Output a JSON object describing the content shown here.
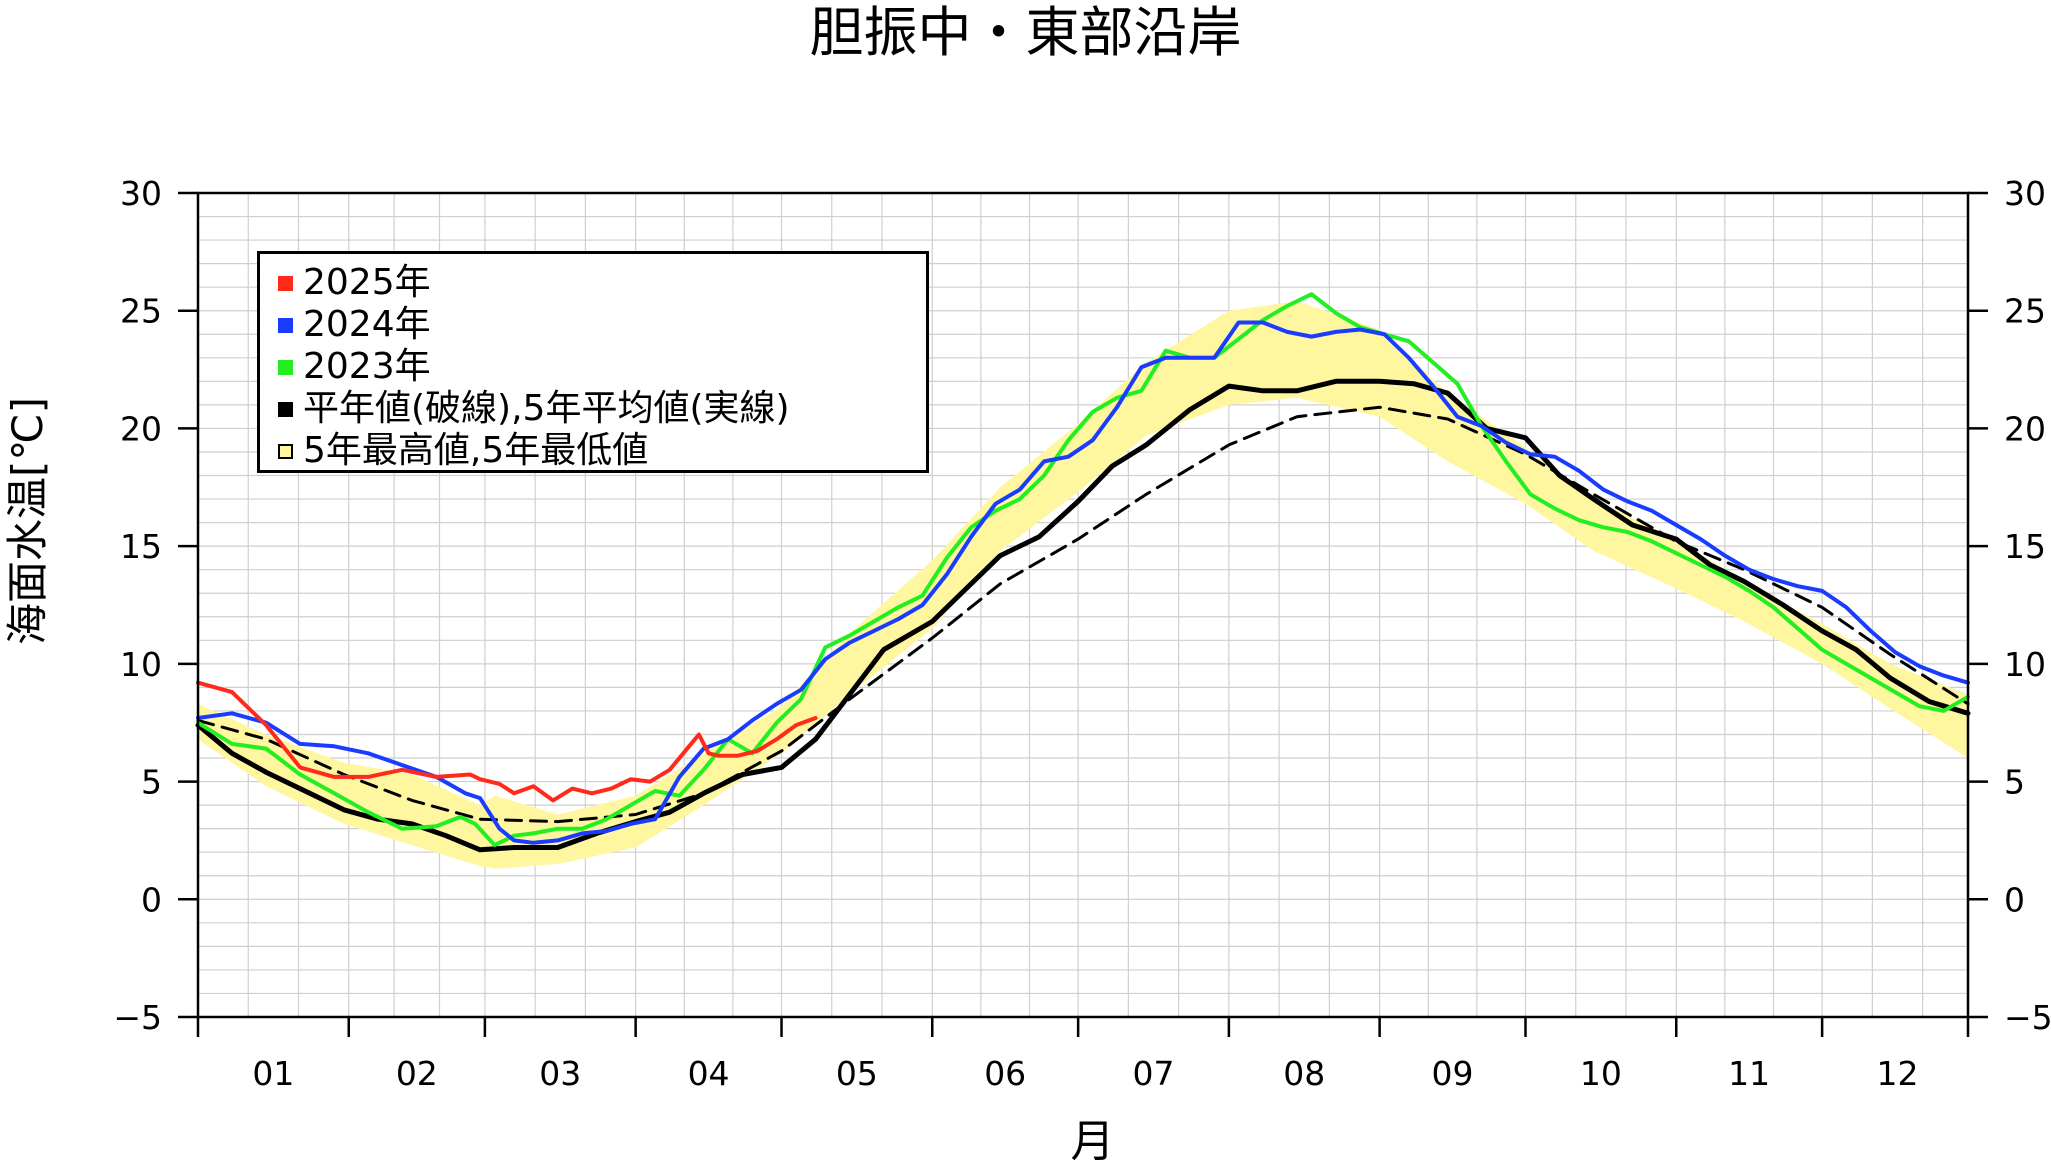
{
  "chart_data": {
    "type": "line",
    "title": "胆振中・東部沿岸",
    "xlabel": "月",
    "ylabel": "海面水温[℃]",
    "x_ticks": [
      "01",
      "02",
      "03",
      "04",
      "05",
      "06",
      "07",
      "08",
      "09",
      "10",
      "11",
      "12"
    ],
    "y_ticks": [
      "30",
      "25",
      "20",
      "15",
      "10",
      "5",
      "0",
      "−5"
    ],
    "ylim": [
      -5,
      30
    ],
    "xlim": [
      1,
      365
    ],
    "x_unit": "day of year",
    "grid": true,
    "legend_placement": "top-left",
    "legend": [
      {
        "label": "2025年",
        "color": "#ff2a1a",
        "style": "filled"
      },
      {
        "label": "2024年",
        "color": "#1a3cff",
        "style": "filled"
      },
      {
        "label": "2023年",
        "color": "#22ee22",
        "style": "filled"
      },
      {
        "label": "平年値(破線),5年平均値(実線)",
        "color": "#000000",
        "style": "filled"
      },
      {
        "label": "5年最高値,5年最低値",
        "color": "#fff6a0",
        "style": "outlined"
      }
    ],
    "band_5yr": {
      "name": "5年最高値,5年最低値",
      "x": [
        1,
        15,
        31,
        45,
        59,
        62,
        75,
        91,
        105,
        121,
        135,
        152,
        166,
        182,
        196,
        213,
        227,
        244,
        258,
        274,
        288,
        305,
        319,
        335,
        349,
        365
      ],
      "high": [
        8.3,
        7.0,
        5.8,
        5.3,
        4.0,
        4.4,
        3.6,
        4.4,
        6.2,
        8.2,
        11.3,
        14.4,
        17.5,
        20.2,
        22.8,
        25.0,
        25.4,
        24.2,
        21.5,
        19.2,
        17.0,
        15.3,
        13.5,
        11.7,
        10.0,
        8.7
      ],
      "low": [
        6.8,
        4.8,
        3.2,
        2.3,
        1.4,
        1.3,
        1.5,
        2.2,
        4.0,
        6.2,
        8.7,
        11.5,
        14.8,
        17.3,
        19.7,
        21.0,
        21.3,
        20.5,
        18.6,
        16.8,
        14.8,
        13.2,
        11.8,
        10.0,
        8.1,
        6.0
      ]
    },
    "series": [
      {
        "name": "2025年",
        "color": "#ff2a1a",
        "x": [
          1,
          8,
          15,
          22,
          29,
          36,
          43,
          50,
          57,
          59,
          63,
          66,
          70,
          74,
          78,
          82,
          86,
          90,
          94,
          98,
          102,
          104,
          106,
          108,
          112,
          116,
          120,
          124,
          128
        ],
        "y": [
          9.2,
          8.8,
          7.4,
          5.6,
          5.2,
          5.2,
          5.5,
          5.2,
          5.3,
          5.1,
          4.9,
          4.5,
          4.8,
          4.2,
          4.7,
          4.5,
          4.7,
          5.1,
          5.0,
          5.5,
          6.5,
          7.0,
          6.2,
          6.1,
          6.1,
          6.3,
          6.8,
          7.4,
          7.7
        ]
      },
      {
        "name": "2024年",
        "color": "#1a3cff",
        "x": [
          1,
          8,
          15,
          22,
          29,
          36,
          43,
          50,
          56,
          59,
          63,
          66,
          70,
          75,
          80,
          85,
          90,
          95,
          100,
          105,
          110,
          115,
          120,
          125,
          130,
          135,
          140,
          145,
          150,
          155,
          160,
          165,
          170,
          175,
          180,
          185,
          190,
          195,
          200,
          205,
          210,
          215,
          220,
          225,
          230,
          235,
          240,
          245,
          250,
          255,
          260,
          265,
          270,
          275,
          280,
          285,
          290,
          295,
          300,
          305,
          310,
          315,
          320,
          325,
          330,
          335,
          340,
          345,
          350,
          355,
          360,
          365
        ],
        "y": [
          7.7,
          7.9,
          7.5,
          6.6,
          6.5,
          6.2,
          5.7,
          5.2,
          4.5,
          4.3,
          3.0,
          2.5,
          2.4,
          2.5,
          2.8,
          2.9,
          3.2,
          3.4,
          5.2,
          6.4,
          6.8,
          7.6,
          8.3,
          8.9,
          10.2,
          10.9,
          11.4,
          11.9,
          12.5,
          13.8,
          15.4,
          16.8,
          17.4,
          18.6,
          18.8,
          19.5,
          20.9,
          22.6,
          23.0,
          23.0,
          23.0,
          24.5,
          24.5,
          24.1,
          23.9,
          24.1,
          24.2,
          24.0,
          23.0,
          21.8,
          20.5,
          20.1,
          19.4,
          18.9,
          18.8,
          18.2,
          17.4,
          16.9,
          16.5,
          15.9,
          15.3,
          14.6,
          14.0,
          13.6,
          13.3,
          13.1,
          12.4,
          11.4,
          10.5,
          9.9,
          9.5,
          9.2
        ]
      },
      {
        "name": "2023年",
        "color": "#22ee22",
        "x": [
          1,
          8,
          15,
          22,
          29,
          36,
          43,
          50,
          55,
          58,
          62,
          66,
          70,
          75,
          80,
          85,
          90,
          95,
          100,
          105,
          110,
          115,
          120,
          125,
          130,
          135,
          140,
          145,
          150,
          155,
          160,
          165,
          170,
          175,
          180,
          185,
          190,
          195,
          200,
          205,
          210,
          215,
          220,
          225,
          230,
          235,
          240,
          245,
          250,
          255,
          260,
          265,
          270,
          275,
          280,
          285,
          290,
          295,
          300,
          305,
          310,
          315,
          320,
          325,
          330,
          335,
          340,
          345,
          350,
          355,
          360,
          365
        ],
        "y": [
          7.5,
          6.6,
          6.4,
          5.3,
          4.5,
          3.7,
          3.0,
          3.1,
          3.5,
          3.2,
          2.3,
          2.7,
          2.8,
          3.0,
          3.0,
          3.4,
          4.0,
          4.6,
          4.4,
          5.5,
          6.8,
          6.2,
          7.5,
          8.5,
          10.7,
          11.2,
          11.8,
          12.4,
          12.9,
          14.5,
          15.8,
          16.5,
          17.0,
          18.0,
          19.5,
          20.7,
          21.3,
          21.6,
          23.3,
          23.0,
          23.0,
          23.8,
          24.6,
          25.2,
          25.7,
          24.9,
          24.3,
          24.0,
          23.7,
          22.8,
          21.9,
          20.1,
          18.6,
          17.2,
          16.6,
          16.1,
          15.8,
          15.6,
          15.2,
          14.7,
          14.2,
          13.7,
          13.1,
          12.4,
          11.5,
          10.6,
          10.0,
          9.4,
          8.8,
          8.2,
          8.0,
          8.6
        ]
      },
      {
        "name": "平年値(破線)",
        "color": "#000000",
        "dash": true,
        "x": [
          1,
          15,
          31,
          45,
          59,
          75,
          91,
          105,
          121,
          135,
          152,
          166,
          182,
          196,
          213,
          227,
          244,
          258,
          274,
          288,
          305,
          319,
          335,
          349,
          365
        ],
        "y": [
          7.6,
          6.8,
          5.3,
          4.2,
          3.4,
          3.3,
          3.6,
          4.5,
          6.3,
          8.5,
          11.1,
          13.4,
          15.3,
          17.2,
          19.3,
          20.5,
          20.9,
          20.4,
          18.9,
          17.2,
          15.2,
          14.0,
          12.4,
          10.4,
          8.3
        ]
      },
      {
        "name": "5年平均値(実線)",
        "color": "#000000",
        "dash": false,
        "x": [
          1,
          8,
          15,
          22,
          31,
          38,
          45,
          52,
          59,
          66,
          75,
          83,
          91,
          98,
          105,
          113,
          121,
          128,
          135,
          142,
          152,
          159,
          166,
          174,
          182,
          189,
          196,
          205,
          213,
          220,
          227,
          235,
          244,
          251,
          258,
          266,
          274,
          281,
          288,
          296,
          305,
          312,
          319,
          327,
          335,
          342,
          349,
          357,
          365
        ],
        "y": [
          7.4,
          6.2,
          5.4,
          4.7,
          3.8,
          3.4,
          3.2,
          2.7,
          2.1,
          2.2,
          2.2,
          2.8,
          3.3,
          3.7,
          4.5,
          5.3,
          5.6,
          6.8,
          8.7,
          10.6,
          11.8,
          13.2,
          14.6,
          15.4,
          16.9,
          18.4,
          19.3,
          20.8,
          21.8,
          21.6,
          21.6,
          22.0,
          22.0,
          21.9,
          21.5,
          20.0,
          19.6,
          18.0,
          17.0,
          15.9,
          15.3,
          14.2,
          13.5,
          12.5,
          11.4,
          10.6,
          9.4,
          8.4,
          7.9
        ]
      }
    ]
  }
}
